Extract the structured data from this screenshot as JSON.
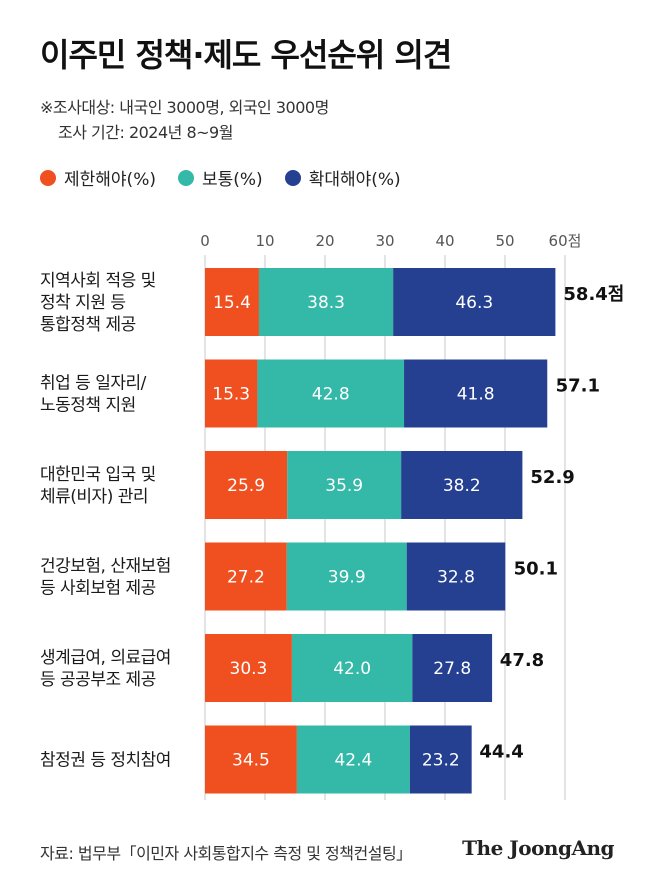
{
  "title": "이주민 정책·제도 우선순위 의견",
  "note_line1": "※조사대상: 내국인 3000명, 외국인 3000명",
  "note_line2": "조사 기간: 2024년 8~9월",
  "footer_source": "자료: 법무부「이민자 사회통합지수 측정 및 정책컨설팅」",
  "brand": "The JoongAng",
  "colors": {
    "restrict": "#f04f1f",
    "normal": "#34b8a8",
    "expand": "#253f91",
    "grid": "#c8c8c8"
  },
  "chart_data": {
    "type": "bar",
    "orientation": "horizontal",
    "stacked": true,
    "xlim": [
      0,
      60
    ],
    "ticks": [
      "0",
      "10",
      "20",
      "30",
      "40",
      "50",
      "60점"
    ],
    "tick_values": [
      0,
      10,
      20,
      30,
      40,
      50,
      60
    ],
    "grid": true,
    "legend_position": "top-left",
    "categories": [
      [
        "지역사회 적응 및",
        "정착 지원 등",
        "통합정책 제공"
      ],
      [
        "취업 등 일자리/",
        "노동정책 지원"
      ],
      [
        "대한민국 입국 및",
        "체류(비자) 관리"
      ],
      [
        "건강보험, 산재보험",
        "등 사회보험 제공"
      ],
      [
        "생계급여, 의료급여",
        "등 공공부조 제공"
      ],
      [
        "참정권 등 정치참여"
      ]
    ],
    "series": [
      {
        "name": "제한해야(%)",
        "color": "#f04f1f",
        "values": [
          "15.4",
          "15.3",
          "25.9",
          "27.2",
          "30.3",
          "34.5"
        ]
      },
      {
        "name": "보통(%)",
        "color": "#34b8a8",
        "values": [
          "38.3",
          "42.8",
          "35.9",
          "39.9",
          "42.0",
          "42.4"
        ]
      },
      {
        "name": "확대해야(%)",
        "color": "#253f91",
        "values": [
          "46.3",
          "41.8",
          "38.2",
          "32.8",
          "27.8",
          "23.2"
        ]
      }
    ],
    "scores": [
      58.4,
      57.1,
      52.9,
      50.1,
      47.8,
      44.4
    ],
    "score_labels": [
      "58.4점",
      "57.1",
      "52.9",
      "50.1",
      "47.8",
      "44.4"
    ]
  }
}
